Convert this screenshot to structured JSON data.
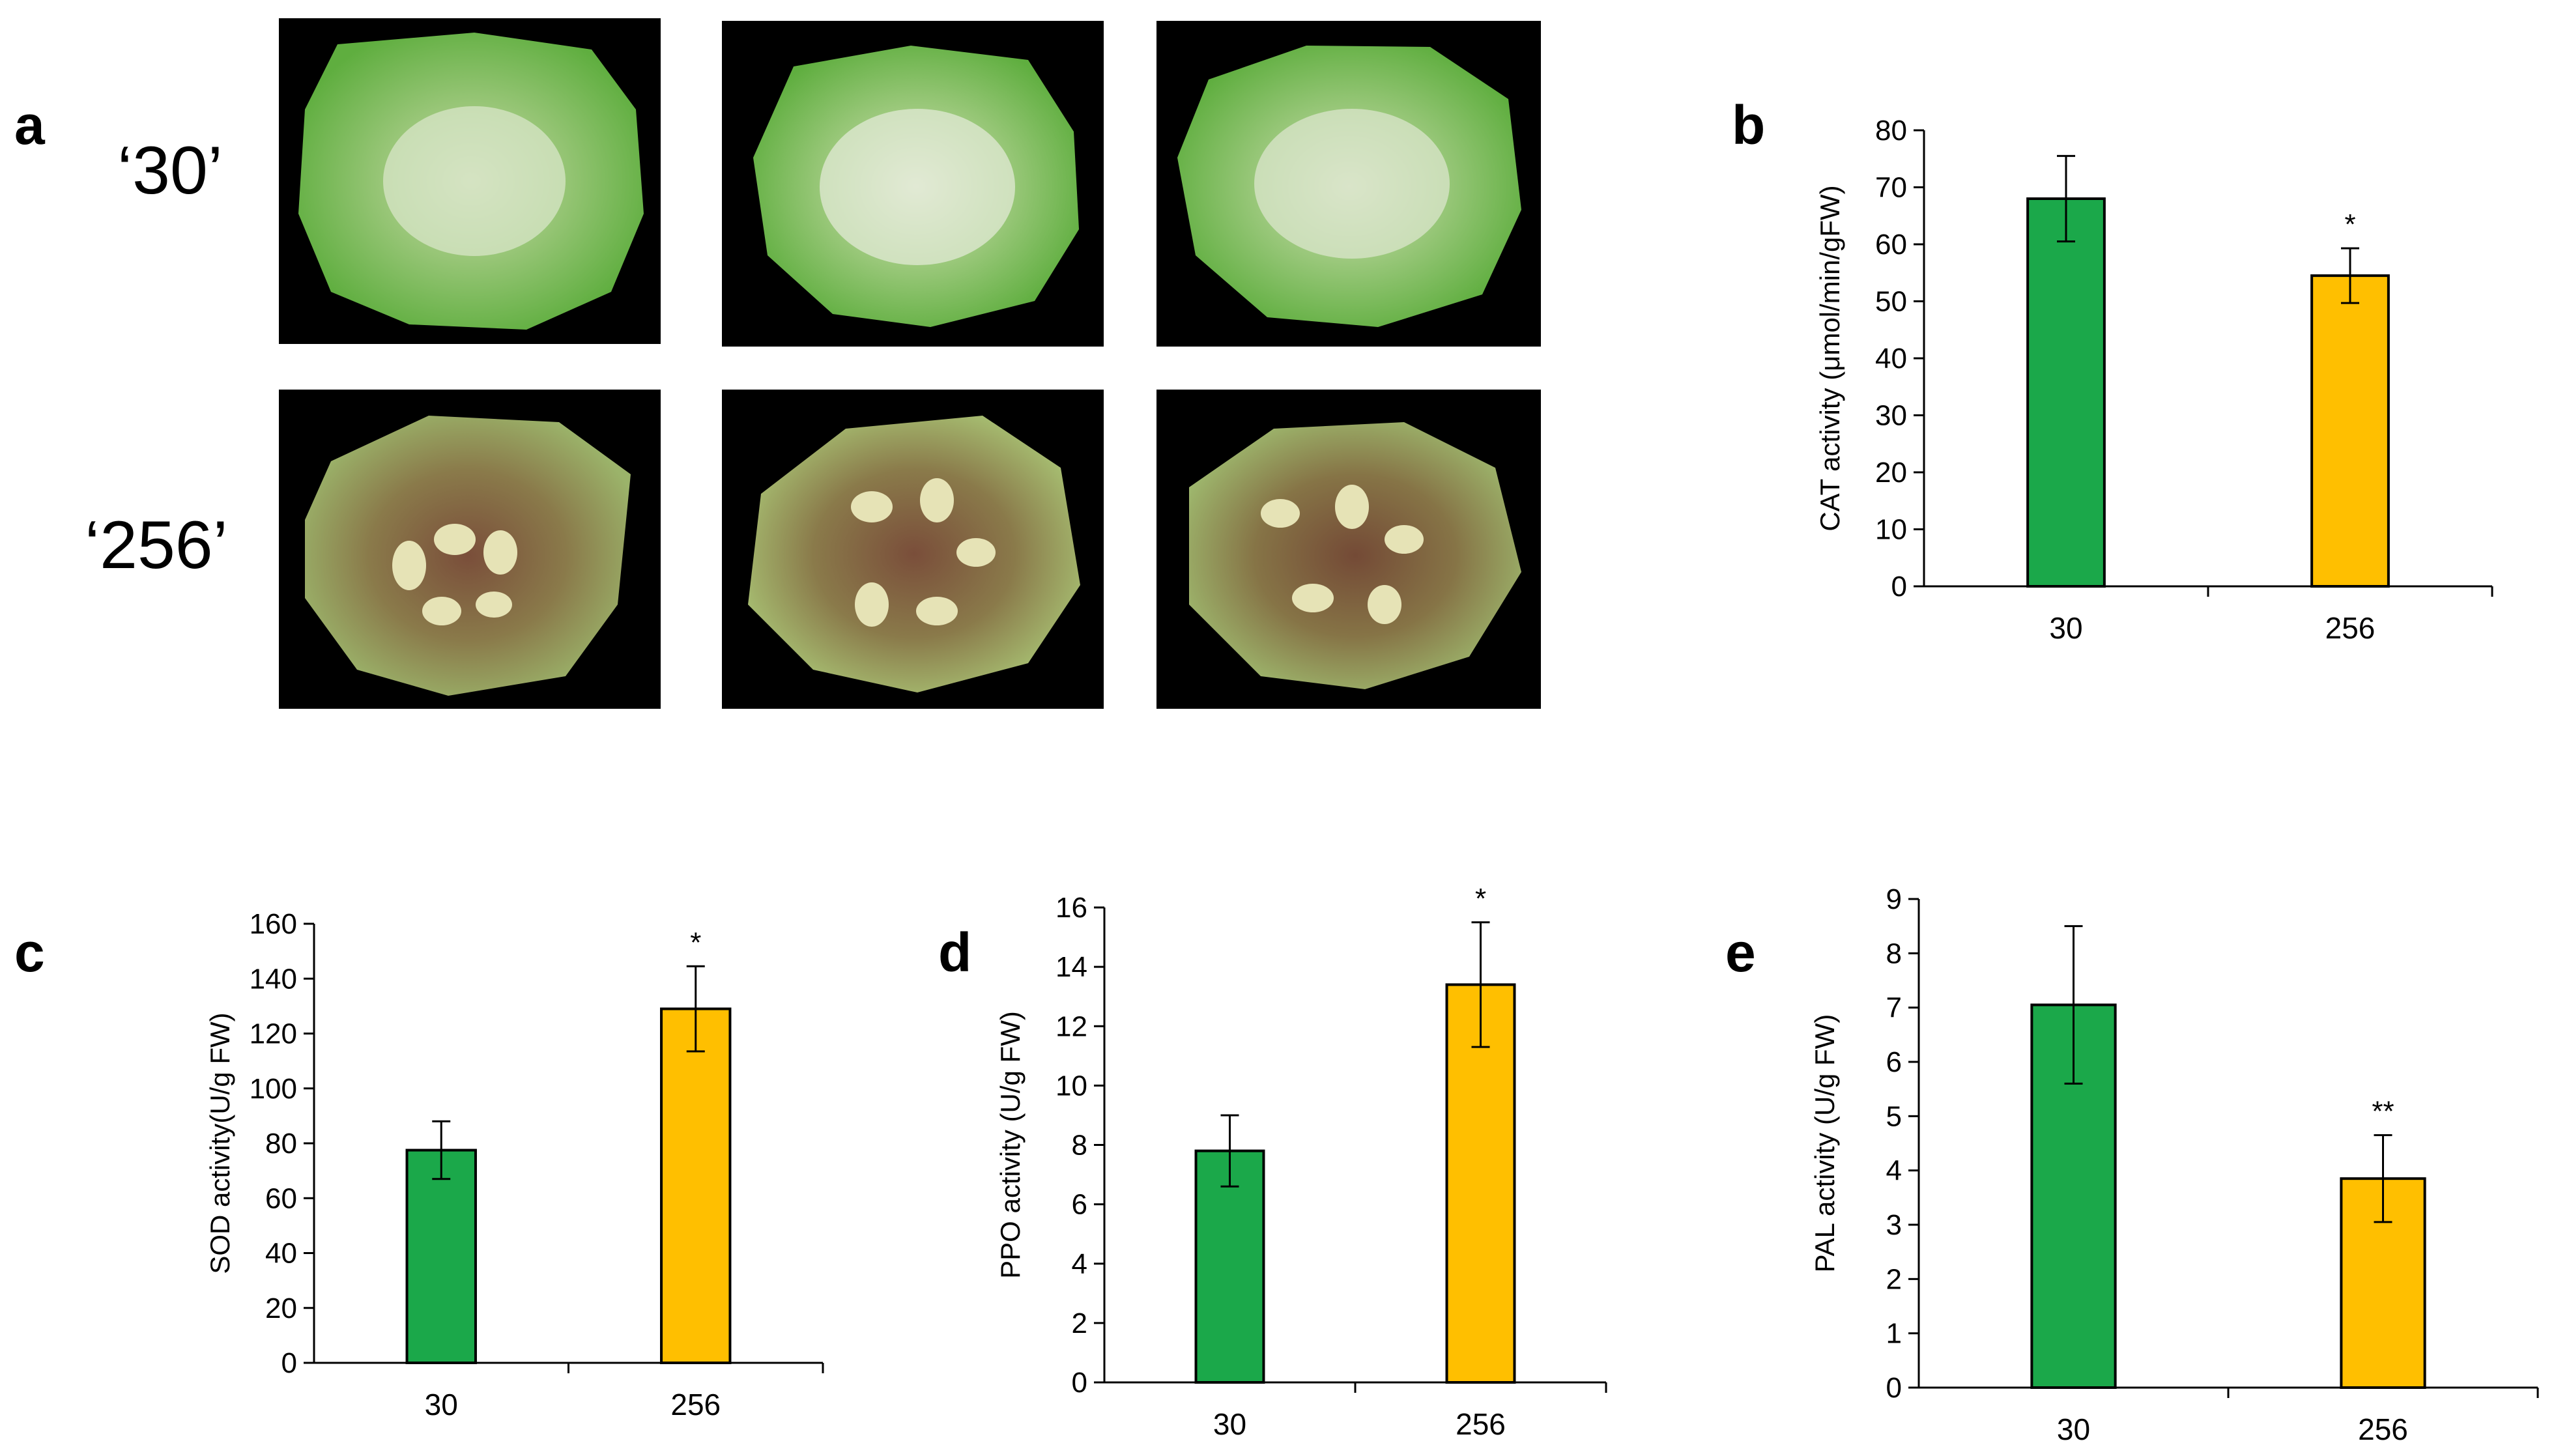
{
  "panel_labels": {
    "a": "a",
    "b": "b",
    "c": "c",
    "d": "d",
    "e": "e"
  },
  "photo_rows": [
    {
      "label": "‘30’",
      "color": "green",
      "count": 3
    },
    {
      "label": "‘256’",
      "color": "brown",
      "count": 3
    }
  ],
  "colors": {
    "bar_30": "#1ba84a",
    "bar_256": "#ffbf00",
    "axis": "#000000"
  },
  "chart_data": [
    {
      "id": "b",
      "type": "bar",
      "categories": [
        "30",
        "256"
      ],
      "values": [
        68,
        54.5
      ],
      "errors": [
        7.5,
        4.8
      ],
      "significance": [
        "",
        "*"
      ],
      "ylabel": "CAT activity (μmol/min/gFW)",
      "ylim": [
        0,
        80
      ],
      "yticks": [
        0,
        10,
        20,
        30,
        40,
        50,
        60,
        70,
        80
      ]
    },
    {
      "id": "c",
      "type": "bar",
      "categories": [
        "30",
        "256"
      ],
      "values": [
        77.5,
        129
      ],
      "errors": [
        10.5,
        15.5
      ],
      "significance": [
        "",
        "*"
      ],
      "ylabel": "SOD activity(U/g FW)",
      "ylim": [
        0,
        160
      ],
      "yticks": [
        0,
        20,
        40,
        60,
        80,
        100,
        120,
        140,
        160
      ]
    },
    {
      "id": "d",
      "type": "bar",
      "categories": [
        "30",
        "256"
      ],
      "values": [
        7.8,
        13.4
      ],
      "errors": [
        1.2,
        2.1
      ],
      "significance": [
        "",
        "*"
      ],
      "ylabel": "PPO activity (U/g FW)",
      "ylim": [
        0,
        16
      ],
      "yticks": [
        0,
        2,
        4,
        6,
        8,
        10,
        12,
        14,
        16
      ]
    },
    {
      "id": "e",
      "type": "bar",
      "categories": [
        "30",
        "256"
      ],
      "values": [
        7.05,
        3.85
      ],
      "errors": [
        1.45,
        0.8
      ],
      "significance": [
        "",
        "**"
      ],
      "ylabel": "PAL activity (U/g FW)",
      "ylim": [
        0,
        9
      ],
      "yticks": [
        0,
        1,
        2,
        3,
        4,
        5,
        6,
        7,
        8,
        9
      ]
    }
  ]
}
